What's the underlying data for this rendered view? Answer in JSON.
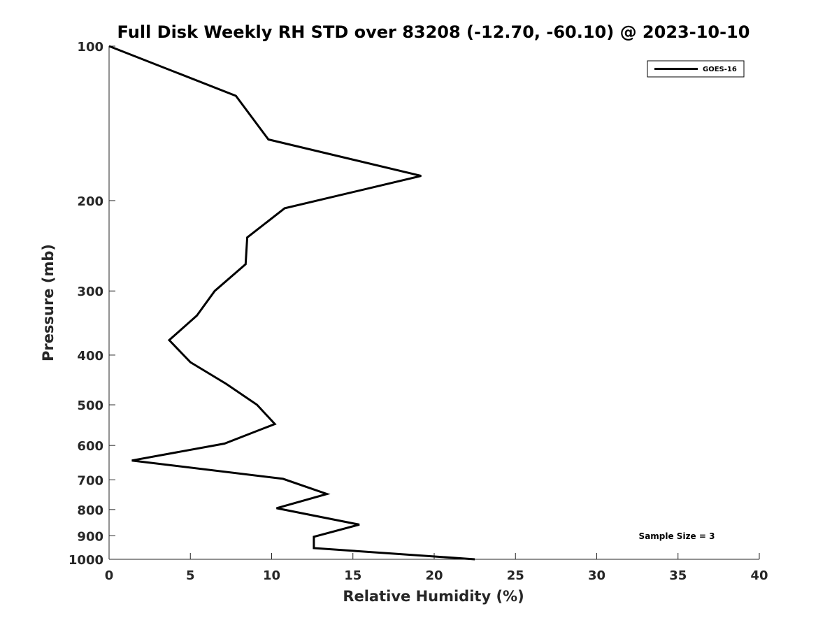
{
  "chart_data": {
    "type": "line",
    "title": "Full Disk Weekly RH STD over 83208 (-12.70, -60.10) @ 2023-10-10",
    "xlabel": "Relative Humidity (%)",
    "ylabel": "Pressure (mb)",
    "xlim": [
      0,
      40
    ],
    "ylim": [
      100,
      1000
    ],
    "yscale": "log",
    "y_reversed": true,
    "grid": false,
    "legend_position": "top-right",
    "x_ticks": [
      "0",
      "5",
      "10",
      "15",
      "20",
      "25",
      "30",
      "35",
      "40"
    ],
    "y_ticks": [
      "100",
      "200",
      "300",
      "400",
      "500",
      "600",
      "700",
      "800",
      "900",
      "1000"
    ],
    "annotation": "Sample Size = 3",
    "series": [
      {
        "name": "GOES-16",
        "color": "#000000",
        "points": [
          {
            "x": 0.0,
            "y": 100
          },
          {
            "x": 7.8,
            "y": 125
          },
          {
            "x": 9.8,
            "y": 152
          },
          {
            "x": 19.2,
            "y": 179
          },
          {
            "x": 10.8,
            "y": 207
          },
          {
            "x": 8.5,
            "y": 236
          },
          {
            "x": 8.4,
            "y": 266
          },
          {
            "x": 6.5,
            "y": 300
          },
          {
            "x": 5.4,
            "y": 335
          },
          {
            "x": 3.7,
            "y": 374
          },
          {
            "x": 5.0,
            "y": 413
          },
          {
            "x": 7.2,
            "y": 455
          },
          {
            "x": 9.1,
            "y": 500
          },
          {
            "x": 10.2,
            "y": 545
          },
          {
            "x": 7.1,
            "y": 595
          },
          {
            "x": 1.4,
            "y": 642
          },
          {
            "x": 10.7,
            "y": 697
          },
          {
            "x": 13.4,
            "y": 746
          },
          {
            "x": 10.3,
            "y": 795
          },
          {
            "x": 15.4,
            "y": 856
          },
          {
            "x": 12.6,
            "y": 904
          },
          {
            "x": 12.6,
            "y": 951
          },
          {
            "x": 22.5,
            "y": 1000
          }
        ]
      }
    ]
  }
}
